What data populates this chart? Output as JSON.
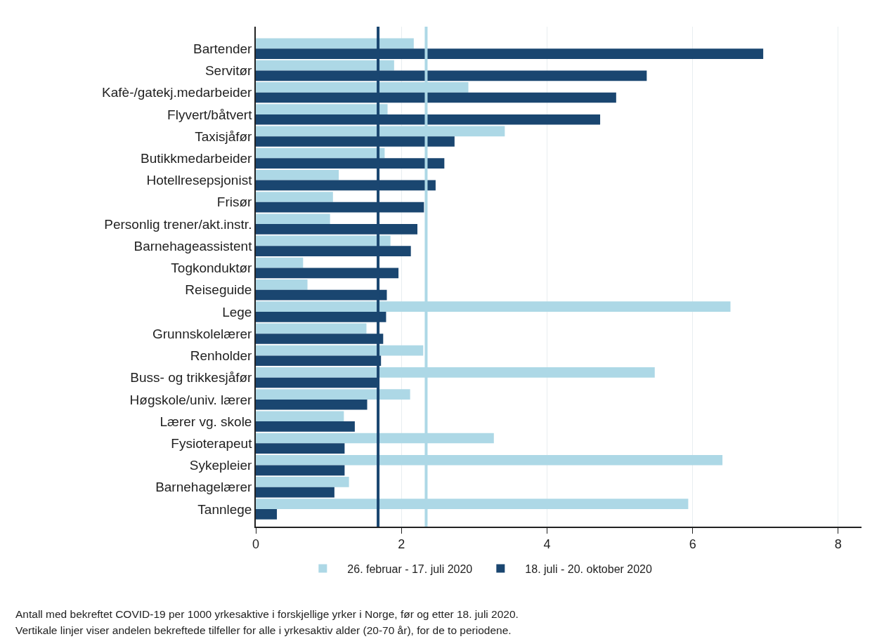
{
  "chart_data": {
    "type": "bar",
    "orientation": "horizontal",
    "categories": [
      "Bartender",
      "Servitør",
      "Kafè-/gatekj.medarbeider",
      "Flyvert/båtvert",
      "Taxisjåfør",
      "Butikkmedarbeider",
      "Hotellresepsjonist",
      "Frisør",
      "Personlig trener/akt.instr.",
      "Barnehageassistent",
      "Togkonduktør",
      "Reiseguide",
      "Lege",
      "Grunnskolelærer",
      "Renholder",
      "Buss- og trikkesjåfør",
      "Høgskole/univ. lærer",
      "Lærer vg. skole",
      "Fysioterapeut",
      "Sykepleier",
      "Barnehagelærer",
      "Tannlege"
    ],
    "series": [
      {
        "name": "26. februar - 17. juli 2020",
        "color": "#add8e6",
        "values": [
          2.17,
          1.9,
          2.92,
          1.81,
          3.42,
          1.77,
          1.14,
          1.06,
          1.02,
          1.85,
          0.65,
          0.71,
          6.52,
          1.52,
          2.3,
          5.48,
          2.12,
          1.21,
          3.27,
          6.41,
          1.28,
          5.94
        ]
      },
      {
        "name": "18. juli - 20. oktober 2020",
        "color": "#1a4670",
        "values": [
          6.97,
          5.37,
          4.95,
          4.73,
          2.73,
          2.59,
          2.47,
          2.31,
          2.22,
          2.13,
          1.96,
          1.8,
          1.79,
          1.75,
          1.72,
          1.69,
          1.53,
          1.36,
          1.22,
          1.22,
          1.08,
          0.29
        ]
      }
    ],
    "xlim": [
      0,
      8.32
    ],
    "xticks": [
      0,
      2,
      4,
      6,
      8
    ],
    "grid": "x",
    "legend": "bottom",
    "ref_lines": [
      {
        "axis": "x",
        "value": 1.68,
        "color": "#1a4670"
      },
      {
        "axis": "x",
        "value": 2.34,
        "color": "#add8e6"
      }
    ],
    "annotations": [
      "Antall med bekreftet COVID-19 per 1000 yrkesaktive i forskjellige yrker i Norge, før og etter 18. juli 2020.",
      "Vertikale linjer viser andelen bekreftede tilfeller for alle i yrkesaktiv alder (20-70 år), for de to periodene."
    ]
  }
}
